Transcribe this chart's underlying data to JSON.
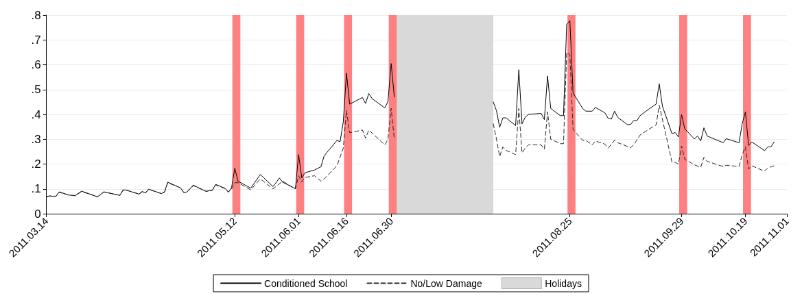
{
  "chart_data": {
    "type": "line",
    "xlim": [
      "2011-03-14",
      "2011-11-01"
    ],
    "xticks": [
      {
        "value": "2011-03-14",
        "label": "2011.03.14"
      },
      {
        "value": "2011-05-12",
        "label": "2011.05.12"
      },
      {
        "value": "2011-06-01",
        "label": "2011.06.01"
      },
      {
        "value": "2011-06-16",
        "label": "2011.06.16"
      },
      {
        "value": "2011-06-30",
        "label": "2011.06.30"
      },
      {
        "value": "2011-08-25",
        "label": "2011.08.25"
      },
      {
        "value": "2011-09-29",
        "label": "2011.09.29"
      },
      {
        "value": "2011-10-19",
        "label": "2011.10.19"
      },
      {
        "value": "2011-11-01",
        "label": "2011.11.01"
      }
    ],
    "ylim": [
      0,
      0.8
    ],
    "yticks": [
      0,
      {
        "value": 0.1,
        "label": ".1"
      },
      {
        "value": 0.2,
        "label": ".2"
      },
      {
        "value": 0.3,
        "label": ".3"
      },
      {
        "value": 0.4,
        "label": ".4"
      },
      {
        "value": 0.5,
        "label": ".5"
      },
      {
        "value": 0.6,
        "label": ".6"
      },
      {
        "value": 0.7,
        "label": ".7"
      },
      {
        "value": 0.8,
        "label": ".8"
      }
    ],
    "grid": "y",
    "legend": "bottom",
    "marker": "none",
    "series": [
      {
        "name": "Conditioned School",
        "color": "#000000",
        "line_style": "solid",
        "x": [
          "2011-03-14",
          "2011-03-15",
          "2011-03-16",
          "2011-03-17",
          "2011-03-18",
          "2011-03-21",
          "2011-03-23",
          "2011-03-25",
          "2011-03-30",
          "2011-04-01",
          "2011-04-06",
          "2011-04-07",
          "2011-04-08",
          "2011-04-12",
          "2011-04-13",
          "2011-04-14",
          "2011-04-15",
          "2011-04-19",
          "2011-04-20",
          "2011-04-21",
          "2011-04-25",
          "2011-04-26",
          "2011-04-27",
          "2011-04-29",
          "2011-05-03",
          "2011-05-05",
          "2011-05-06",
          "2011-05-09",
          "2011-05-10",
          "2011-05-11",
          "2011-05-12",
          "2011-05-13",
          "2011-05-17",
          "2011-05-20",
          "2011-05-24",
          "2011-05-26",
          "2011-05-27",
          "2011-05-31",
          "2011-06-01",
          "2011-06-02",
          "2011-06-03",
          "2011-06-06",
          "2011-06-08",
          "2011-06-09",
          "2011-06-13",
          "2011-06-14",
          "2011-06-15",
          "2011-06-16",
          "2011-06-17",
          "2011-06-21",
          "2011-06-22",
          "2011-06-23",
          "2011-06-24",
          "2011-06-28",
          "2011-06-29",
          "2011-06-30",
          "2011-07-01",
          "2011-07-15",
          "2011-08-01",
          "2011-08-02",
          "2011-08-03",
          "2011-08-04",
          "2011-08-05",
          "2011-08-08",
          "2011-08-09",
          "2011-08-10",
          "2011-08-11",
          "2011-08-12",
          "2011-08-16",
          "2011-08-17",
          "2011-08-18",
          "2011-08-19",
          "2011-08-22",
          "2011-08-23",
          "2011-08-24",
          "2011-08-25",
          "2011-08-26",
          "2011-08-29",
          "2011-08-30",
          "2011-09-01",
          "2011-09-02",
          "2011-09-05",
          "2011-09-06",
          "2011-09-07",
          "2011-09-08",
          "2011-09-09",
          "2011-09-12",
          "2011-09-13",
          "2011-09-14",
          "2011-09-15",
          "2011-09-16",
          "2011-09-19",
          "2011-09-21",
          "2011-09-22",
          "2011-09-23",
          "2011-09-26",
          "2011-09-27",
          "2011-09-28",
          "2011-09-29",
          "2011-09-30",
          "2011-10-03",
          "2011-10-04",
          "2011-10-05",
          "2011-10-06",
          "2011-10-07",
          "2011-10-12",
          "2011-10-13",
          "2011-10-17",
          "2011-10-18",
          "2011-10-19",
          "2011-10-20",
          "2011-10-21",
          "2011-10-25",
          "2011-10-26",
          "2011-10-27",
          "2011-10-28"
        ],
        "values": [
          0.068,
          0.072,
          0.07,
          0.071,
          0.088,
          0.075,
          0.073,
          0.091,
          0.068,
          0.088,
          0.074,
          0.096,
          0.095,
          0.079,
          0.09,
          0.083,
          0.099,
          0.081,
          0.088,
          0.127,
          0.104,
          0.086,
          0.087,
          0.115,
          0.09,
          0.095,
          0.118,
          0.102,
          0.087,
          0.105,
          0.183,
          0.131,
          0.103,
          0.158,
          0.109,
          0.144,
          0.127,
          0.101,
          0.238,
          0.144,
          0.165,
          0.176,
          0.189,
          0.233,
          0.295,
          0.29,
          0.37,
          0.566,
          0.441,
          0.468,
          0.444,
          0.484,
          0.464,
          0.426,
          0.452,
          0.605,
          0.47,
          null,
          0.45,
          0.415,
          0.348,
          0.386,
          0.386,
          0.355,
          0.58,
          0.362,
          0.388,
          0.4,
          0.404,
          0.379,
          0.555,
          0.424,
          0.395,
          0.395,
          0.762,
          0.778,
          0.486,
          0.424,
          0.413,
          0.413,
          0.428,
          0.406,
          0.384,
          0.381,
          0.413,
          0.388,
          0.359,
          0.359,
          0.375,
          0.375,
          0.395,
          0.424,
          0.441,
          0.523,
          0.433,
          0.322,
          0.327,
          0.309,
          0.399,
          0.342,
          0.301,
          0.313,
          0.293,
          0.346,
          0.313,
          0.286,
          0.302,
          0.286,
          0.362,
          0.41,
          0.275,
          0.289,
          0.254,
          0.269,
          0.269,
          0.289
        ]
      },
      {
        "name": "No/Low Damage",
        "color": "#262626",
        "line_style": "dashed",
        "x": [
          "2011-03-14",
          "2011-03-15",
          "2011-03-16",
          "2011-03-17",
          "2011-03-18",
          "2011-03-21",
          "2011-03-23",
          "2011-03-25",
          "2011-03-30",
          "2011-04-01",
          "2011-04-06",
          "2011-04-07",
          "2011-04-08",
          "2011-04-12",
          "2011-04-13",
          "2011-04-14",
          "2011-04-15",
          "2011-04-19",
          "2011-04-20",
          "2011-04-21",
          "2011-04-25",
          "2011-04-26",
          "2011-04-27",
          "2011-04-29",
          "2011-05-03",
          "2011-05-05",
          "2011-05-06",
          "2011-05-09",
          "2011-05-10",
          "2011-05-11",
          "2011-05-12",
          "2011-05-13",
          "2011-05-17",
          "2011-05-20",
          "2011-05-24",
          "2011-05-27",
          "2011-05-31",
          "2011-06-01",
          "2011-06-02",
          "2011-06-03",
          "2011-06-06",
          "2011-06-08",
          "2011-06-09",
          "2011-06-13",
          "2011-06-15",
          "2011-06-16",
          "2011-06-17",
          "2011-06-21",
          "2011-06-22",
          "2011-06-23",
          "2011-06-28",
          "2011-06-29",
          "2011-06-30",
          "2011-07-01",
          "2011-07-15",
          "2011-08-01",
          "2011-08-02",
          "2011-08-03",
          "2011-08-04",
          "2011-08-05",
          "2011-08-08",
          "2011-08-09",
          "2011-08-10",
          "2011-08-11",
          "2011-08-12",
          "2011-08-16",
          "2011-08-17",
          "2011-08-18",
          "2011-08-19",
          "2011-08-22",
          "2011-08-23",
          "2011-08-24",
          "2011-08-25",
          "2011-08-26",
          "2011-08-29",
          "2011-08-30",
          "2011-09-01",
          "2011-09-02",
          "2011-09-05",
          "2011-09-06",
          "2011-09-08",
          "2011-09-09",
          "2011-09-13",
          "2011-09-14",
          "2011-09-16",
          "2011-09-19",
          "2011-09-21",
          "2011-09-22",
          "2011-09-26",
          "2011-09-27",
          "2011-09-28",
          "2011-09-29",
          "2011-09-30",
          "2011-10-03",
          "2011-10-05",
          "2011-10-06",
          "2011-10-07",
          "2011-10-12",
          "2011-10-13",
          "2011-10-17",
          "2011-10-18",
          "2011-10-19",
          "2011-10-20",
          "2011-10-21",
          "2011-10-25",
          "2011-10-26",
          "2011-10-28"
        ],
        "values": [
          0.068,
          0.071,
          0.07,
          0.07,
          0.086,
          0.075,
          0.072,
          0.089,
          0.068,
          0.087,
          0.074,
          0.094,
          0.095,
          0.079,
          0.088,
          0.083,
          0.098,
          0.081,
          0.086,
          0.125,
          0.104,
          0.085,
          0.087,
          0.113,
          0.09,
          0.094,
          0.116,
          0.101,
          0.087,
          0.1,
          0.125,
          0.125,
          0.096,
          0.14,
          0.1,
          0.131,
          0.1,
          0.153,
          0.128,
          0.146,
          0.153,
          0.131,
          0.14,
          0.193,
          0.264,
          0.415,
          0.326,
          0.337,
          0.304,
          0.337,
          0.277,
          0.3,
          0.424,
          0.3,
          null,
          0.362,
          0.3,
          0.23,
          0.269,
          0.255,
          0.238,
          0.424,
          0.245,
          0.264,
          0.277,
          0.277,
          0.26,
          0.41,
          0.3,
          0.282,
          0.282,
          0.65,
          0.64,
          0.34,
          0.295,
          0.296,
          0.277,
          0.293,
          0.28,
          0.264,
          0.296,
          0.286,
          0.266,
          0.277,
          0.317,
          0.342,
          0.357,
          0.437,
          0.207,
          0.207,
          0.2,
          0.273,
          0.219,
          0.197,
          0.187,
          0.227,
          0.211,
          0.19,
          0.195,
          0.19,
          0.238,
          0.269,
          0.18,
          0.193,
          0.171,
          0.184,
          0.193
        ]
      }
    ],
    "bands": [
      {
        "axis": "x",
        "from": "2011-07-01",
        "to": "2011-08-01",
        "label": "Holidays",
        "color": "#d9d9d9"
      },
      {
        "axis": "x",
        "from": "2011-05-11T06:00",
        "to": "2011-05-13T18:00",
        "color": "#ff8080"
      },
      {
        "axis": "x",
        "from": "2011-05-31T06:00",
        "to": "2011-06-02T18:00",
        "color": "#ff8080"
      },
      {
        "axis": "x",
        "from": "2011-06-15T06:00",
        "to": "2011-06-17T18:00",
        "color": "#ff8080"
      },
      {
        "axis": "x",
        "from": "2011-06-29T06:00",
        "to": "2011-07-01T18:00",
        "color": "#ff8080"
      },
      {
        "axis": "x",
        "from": "2011-08-24T06:00",
        "to": "2011-08-26T18:00",
        "color": "#ff8080"
      },
      {
        "axis": "x",
        "from": "2011-09-28T06:00",
        "to": "2011-09-30T18:00",
        "color": "#ff8080"
      },
      {
        "axis": "x",
        "from": "2011-10-18T06:00",
        "to": "2011-10-20T18:00",
        "color": "#ff8080"
      }
    ]
  }
}
